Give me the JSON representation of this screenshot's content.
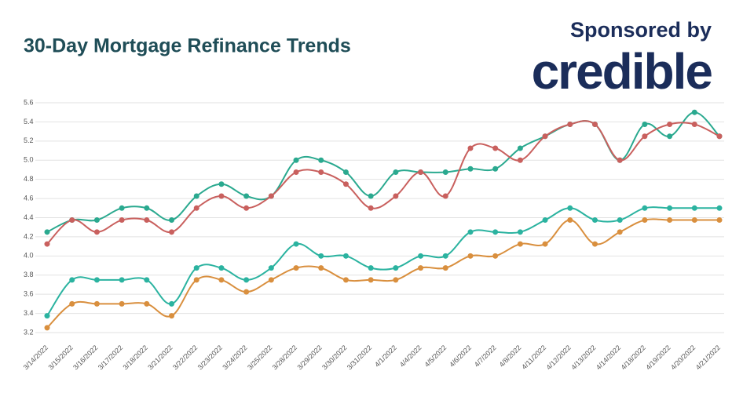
{
  "chart_data": {
    "type": "line",
    "title": "30-Day Mortgage Refinance Trends",
    "sponsor": {
      "label": "Sponsored by",
      "brand": "credible"
    },
    "categories": [
      "3/14/2022",
      "3/15/2022",
      "3/16/2022",
      "3/17/2022",
      "3/18/2022",
      "3/21/2022",
      "3/22/2022",
      "3/23/2022",
      "3/24/2022",
      "3/25/2022",
      "3/28/2022",
      "3/29/2022",
      "3/30/2022",
      "3/31/2022",
      "4/1/2022",
      "4/4/2022",
      "4/5/2022",
      "4/6/2022",
      "4/7/2022",
      "4/8/2022",
      "4/11/2022",
      "4/12/2022",
      "4/13/2022",
      "4/14/2022",
      "4/18/2022",
      "4/19/2022",
      "4/20/2022",
      "4/21/2022"
    ],
    "series": [
      {
        "color": "#2aa98f",
        "values": [
          4.25,
          4.375,
          4.375,
          4.5,
          4.5,
          4.375,
          4.625,
          4.75,
          4.625,
          4.625,
          5.0,
          5.0,
          4.875,
          4.625,
          4.875,
          4.875,
          4.875,
          4.91,
          4.91,
          5.125,
          5.25,
          5.375,
          5.375,
          5.0,
          5.375,
          5.25,
          5.5,
          5.25
        ]
      },
      {
        "color": "#c9605e",
        "values": [
          4.125,
          4.375,
          4.25,
          4.375,
          4.375,
          4.25,
          4.5,
          4.625,
          4.5,
          4.625,
          4.875,
          4.875,
          4.75,
          4.5,
          4.625,
          4.875,
          4.625,
          5.125,
          5.125,
          5.0,
          5.25,
          5.375,
          5.375,
          5.0,
          5.25,
          5.375,
          5.375,
          5.25
        ]
      },
      {
        "color": "#2bb3a0",
        "values": [
          3.375,
          3.75,
          3.75,
          3.75,
          3.75,
          3.5,
          3.875,
          3.875,
          3.75,
          3.875,
          4.125,
          4.0,
          4.0,
          3.875,
          3.875,
          4.0,
          4.0,
          4.25,
          4.25,
          4.25,
          4.375,
          4.5,
          4.375,
          4.375,
          4.5,
          4.5,
          4.5,
          4.5
        ]
      },
      {
        "color": "#d98f3e",
        "values": [
          3.25,
          3.5,
          3.5,
          3.5,
          3.5,
          3.375,
          3.75,
          3.75,
          3.625,
          3.75,
          3.875,
          3.875,
          3.75,
          3.75,
          3.75,
          3.875,
          3.875,
          4.0,
          4.0,
          4.125,
          4.125,
          4.375,
          4.125,
          4.25,
          4.375,
          4.375,
          4.375,
          4.375
        ]
      }
    ],
    "ylim": [
      3.2,
      5.6
    ],
    "yticks": [
      3.2,
      3.4,
      3.6,
      3.8,
      {
        "value": 4,
        "label": "4.0"
      },
      4.2,
      4.4,
      4.6,
      4.8,
      {
        "value": 5,
        "label": "5.0"
      },
      5.2,
      5.4,
      5.6
    ],
    "grid": true
  }
}
